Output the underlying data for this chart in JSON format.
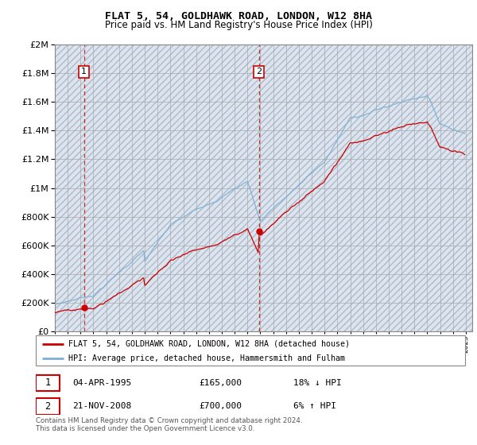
{
  "title": "FLAT 5, 54, GOLDHAWK ROAD, LONDON, W12 8HA",
  "subtitle": "Price paid vs. HM Land Registry's House Price Index (HPI)",
  "legend_line1": "FLAT 5, 54, GOLDHAWK ROAD, LONDON, W12 8HA (detached house)",
  "legend_line2": "HPI: Average price, detached house, Hammersmith and Fulham",
  "transaction1_date": "04-APR-1995",
  "transaction1_price": "£165,000",
  "transaction1_hpi": "18% ↓ HPI",
  "transaction1_year": 1995.27,
  "transaction1_value": 165000,
  "transaction2_date": "21-NOV-2008",
  "transaction2_price": "£700,000",
  "transaction2_hpi": "6% ↑ HPI",
  "transaction2_year": 2008.89,
  "transaction2_value": 700000,
  "footer": "Contains HM Land Registry data © Crown copyright and database right 2024.\nThis data is licensed under the Open Government Licence v3.0.",
  "hpi_color": "#7bafd4",
  "price_color": "#cc0000",
  "ylim": [
    0,
    2000000
  ],
  "xlim_start": 1993,
  "xlim_end": 2025.5,
  "hatch_bg_color": "#dde4ee",
  "plot_bg_color": "#dde8f5"
}
